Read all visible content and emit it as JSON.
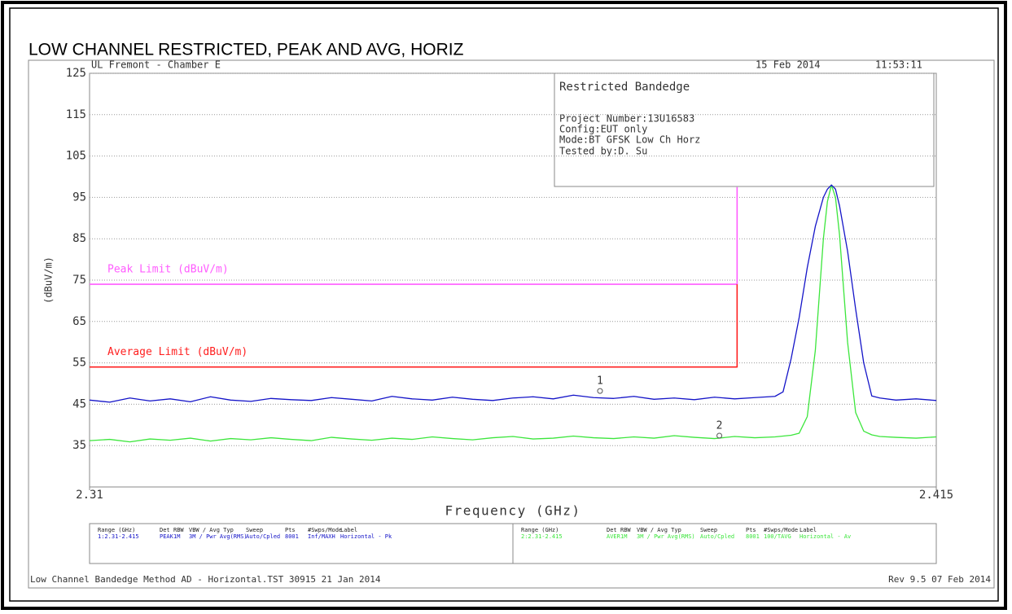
{
  "chart_data": {
    "type": "line",
    "title": "LOW CHANNEL RESTRICTED, PEAK AND AVG, HORIZ",
    "x_label": "Frequency (GHz)",
    "y_label": "(dBuV/m)",
    "xlim": [
      2.31,
      2.415
    ],
    "xticks": [
      2.31,
      2.415
    ],
    "ylim": [
      25,
      125
    ],
    "yticks": [
      35,
      45,
      55,
      65,
      75,
      85,
      95,
      105,
      115,
      125
    ],
    "grid": true,
    "x": [
      2.31,
      2.3125,
      2.315,
      2.3175,
      2.32,
      2.3225,
      2.325,
      2.3275,
      2.33,
      2.3325,
      2.335,
      2.3375,
      2.34,
      2.3425,
      2.345,
      2.3475,
      2.35,
      2.3525,
      2.355,
      2.3575,
      2.36,
      2.3625,
      2.365,
      2.3675,
      2.37,
      2.3725,
      2.375,
      2.3775,
      2.38,
      2.3825,
      2.385,
      2.3875,
      2.39,
      2.3925,
      2.395,
      2.396,
      2.397,
      2.398,
      2.399,
      2.4,
      2.401,
      2.4015,
      2.402,
      2.4025,
      2.403,
      2.404,
      2.405,
      2.406,
      2.407,
      2.408,
      2.41,
      2.4125,
      2.415
    ],
    "series": [
      {
        "color": "#1414c8",
        "values": [
          46,
          45.5,
          46.5,
          45.8,
          46.3,
          45.6,
          46.8,
          46,
          45.7,
          46.4,
          46.1,
          45.9,
          46.6,
          46.2,
          45.8,
          46.9,
          46.3,
          46,
          46.7,
          46.2,
          45.9,
          46.5,
          46.8,
          46.3,
          47.2,
          46.6,
          46.4,
          46.9,
          46.2,
          46.5,
          46.1,
          46.7,
          46.3,
          46.6,
          46.9,
          48,
          56,
          66,
          78,
          88,
          95,
          97,
          98,
          97,
          93,
          82,
          68,
          55,
          47,
          46.5,
          46,
          46.3,
          45.9
        ]
      },
      {
        "color": "#3ce63c",
        "values": [
          36.2,
          36.5,
          35.9,
          36.6,
          36.3,
          36.8,
          36.1,
          36.7,
          36.4,
          36.9,
          36.5,
          36.2,
          37,
          36.6,
          36.3,
          36.8,
          36.5,
          37.1,
          36.7,
          36.4,
          36.9,
          37.2,
          36.6,
          36.8,
          37.3,
          36.9,
          36.7,
          37.1,
          36.8,
          37.4,
          37,
          36.7,
          37.2,
          36.9,
          37.1,
          37.3,
          37.5,
          38,
          42,
          58,
          85,
          94,
          98,
          95,
          86,
          60,
          43,
          38.5,
          37.6,
          37.2,
          37,
          36.8,
          37.1
        ]
      }
    ],
    "limits": [
      {
        "name": "Peak Limit (dBuV/m)",
        "color": "#ff5cff",
        "x": [
          2.31,
          2.3903,
          2.3903
        ],
        "values": [
          74,
          74,
          97.5
        ]
      },
      {
        "name": "Average Limit (dBuV/m)",
        "color": "#ff2020",
        "x": [
          2.31,
          2.3903,
          2.3903
        ],
        "values": [
          54,
          54,
          74
        ]
      }
    ],
    "markers": [
      {
        "label": "1",
        "x": 2.3733,
        "value": 48.2
      },
      {
        "label": "2",
        "x": 2.3881,
        "value": 37.4
      }
    ]
  },
  "header": {
    "site": "UL Fremont - Chamber E",
    "date": "15 Feb 2014",
    "time": "11:53:11"
  },
  "info_box": {
    "title": "Restricted Bandedge",
    "lines": [
      "Project Number:13U16583",
      "Config:EUT only",
      "Mode:BT GFSK Low Ch Horz",
      "Tested by:D. Su"
    ]
  },
  "settings_table": {
    "headers": [
      "Range (GHz)",
      "Det",
      "RBW",
      "VBW / Avg Typ",
      "Sweep",
      "Pts",
      "#Swps/Mode",
      "Label"
    ],
    "rows": [
      [
        "1:2.31-2.415",
        "PEAK",
        "1M",
        "3M / Pwr Avg(RMS)",
        "Auto/Cpled",
        "8001",
        "Inf/MAXH",
        "Horizontal - Pk"
      ],
      [
        "2:2.31-2.415",
        "AVER",
        "1M",
        "3M / Pwr Avg(RMS)",
        "Auto/Cpled",
        "8001",
        "100/TAVG",
        "Horizontal - Av"
      ]
    ]
  },
  "footer": {
    "left": "Low Channel Bandedge Method AD - Horizontal.TST 30915 21 Jan 2014",
    "right": "Rev 9.5 07 Feb 2014"
  }
}
